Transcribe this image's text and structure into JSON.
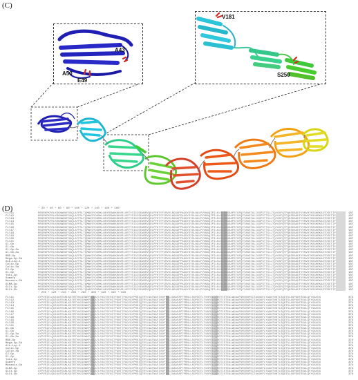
{
  "panels": {
    "c_label": "(C)",
    "d_label": "(D)"
  },
  "inset_left": {
    "labels": [
      "A43",
      "A50",
      "E49"
    ]
  },
  "inset_right": {
    "labels": [
      "V181",
      "S250"
    ]
  },
  "alignment": {
    "block1": {
      "ruler": "*        20         *        40         *        60         *        80         *       100         *       120         *       140         *       160         *       180",
      "end_numbers": [
        "187",
        "187",
        "187",
        "187",
        "187",
        "187",
        "187",
        "187",
        "187",
        "187",
        "187",
        "187",
        "187",
        "187",
        "187",
        "187",
        "187",
        "187",
        "187",
        "187",
        "187",
        "187",
        "187",
        "187",
        "187",
        "187",
        "187",
        "187"
      ]
    },
    "block2": {
      "ruler": "*       200         *       220         *       240         *       260         *       280         *       300         *       320         *       340         *       360",
      "end_numbers": [
        "374",
        "374",
        "374",
        "374",
        "374",
        "374",
        "374",
        "374",
        "374",
        "374",
        "374",
        "374",
        "374",
        "374",
        "374",
        "374",
        "374",
        "374",
        "374",
        "374",
        "374",
        "374",
        "374",
        "374",
        "374",
        "374",
        "374",
        "374"
      ]
    },
    "names": [
      "Fil11",
      "Fil12",
      "Fil13",
      "Fil14",
      "Fil15",
      "Fil16",
      "Fil17",
      "Fil18",
      "Fil19",
      "Fil20",
      "Fil21",
      "Gl-Gb",
      "Gl-Gb",
      "Gl-Gp-Su",
      "Gl-Gb-Su",
      "RBD-Gp",
      "Mega-Gp-Sb",
      "Alk-Lsp-1",
      "Calic-Gp",
      "Calic-Sa",
      "DJ-Gp",
      "Gl-Gp",
      "Yuki-Gp",
      "SsmeYp",
      "Mocanis-Gb",
      "GLMA-Gp",
      "GLCt-Gp",
      "GLCt-Gb"
    ],
    "seq1": "MSSRKPKFRLKRGNWNGFSGQLAFPSLTQMWVDYDGMKLNNYRSWKKKKVRLVRTYSIGISEWSRVQRLPPHTYPIRVVLNGGGPPAGGYDYDLNGLPVVNAQIPILKLSLEKGDAPSTGPQVTANSTALIGGPSTTSLLTQYGSFQTPQKSDAGEFYVNVHTKSGHRKASTDSETIP",
    "seq2": "AYPVRIELQGIGGFEGNLKGTRTVHCSDWKPQGLATLPASTSFHITPGNTTPGGYGYPMSIQTRYLNATNAFIVGPTRLIGAAFAPTPRNLLSGPSDTLTVNFELGQRDTISTEALWDAAPGMIRNPSITAGGKPLYAGNTNNTLSQDTSLASPGNTRSALQFYGAVDG"
  }
}
